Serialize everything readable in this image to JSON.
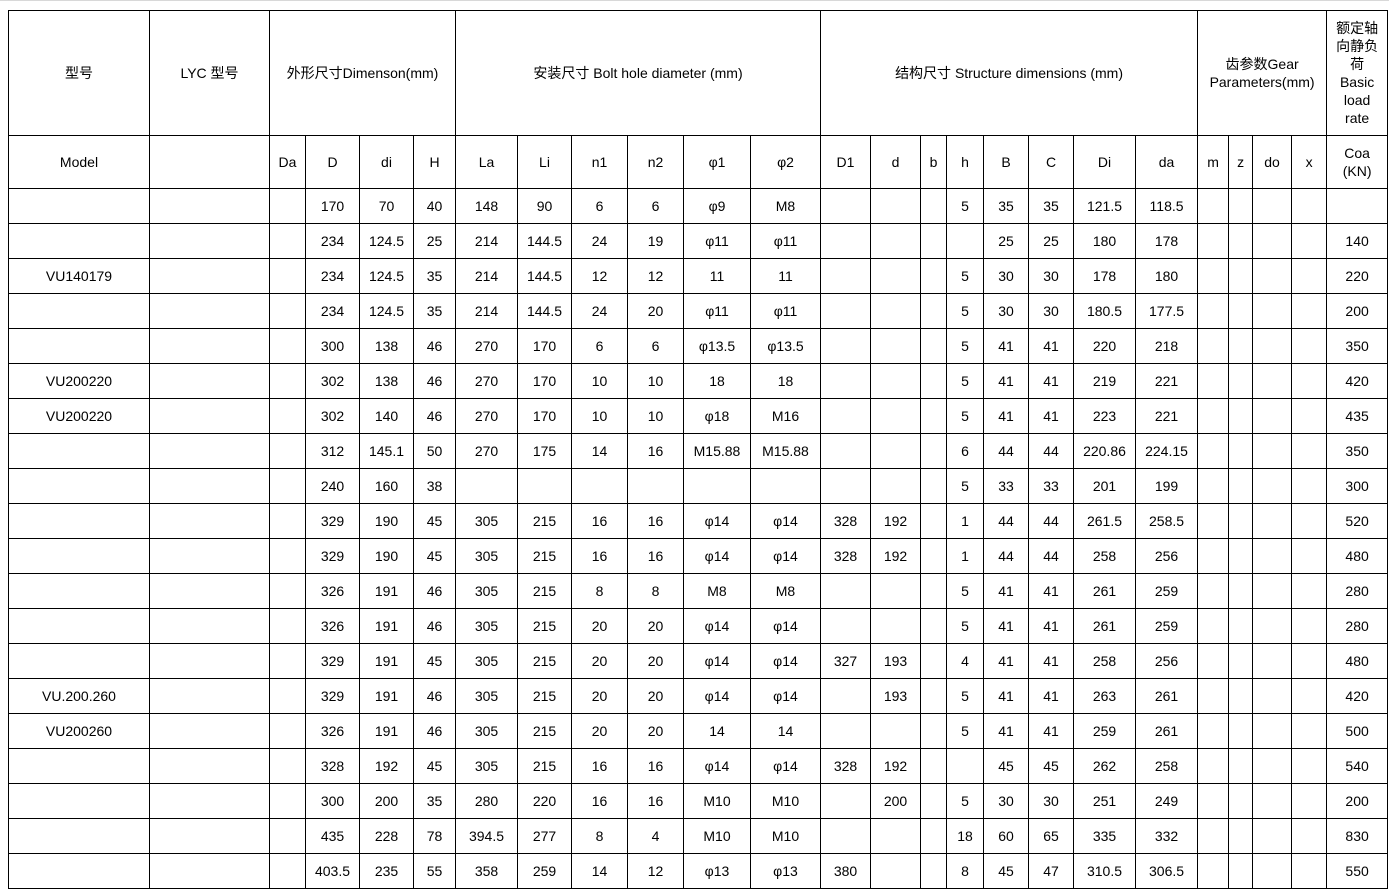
{
  "header": {
    "groups": {
      "model_cn": "型号",
      "lyc": "LYC 型号",
      "dimension": "外形尺寸Dimenson(mm)",
      "bolt": "安装尺寸 Bolt hole diameter (mm)",
      "structure": "结构尺寸 Structure dimensions (mm)",
      "gear": "齿参数Gear Parameters(mm)",
      "load": "额定轴向静负荷 Basic load rate"
    },
    "columns": [
      "Model",
      "",
      "Da",
      "D",
      "di",
      "H",
      "La",
      "Li",
      "n1",
      "n2",
      "φ1",
      "φ2",
      "D1",
      "d",
      "b",
      "h",
      "B",
      "C",
      "Di",
      "da",
      "m",
      "z",
      "do",
      "x",
      "Coa (KN)"
    ]
  },
  "rows": [
    [
      "",
      "",
      "",
      "170",
      "70",
      "40",
      "148",
      "90",
      "6",
      "6",
      "φ9",
      "M8",
      "",
      "",
      "",
      "5",
      "35",
      "35",
      "121.5",
      "118.5",
      "",
      "",
      "",
      "",
      ""
    ],
    [
      "",
      "",
      "",
      "234",
      "124.5",
      "25",
      "214",
      "144.5",
      "24",
      "19",
      "φ11",
      "φ11",
      "",
      "",
      "",
      "",
      "25",
      "25",
      "180",
      "178",
      "",
      "",
      "",
      "",
      "140"
    ],
    [
      "VU140179",
      "",
      "",
      "234",
      "124.5",
      "35",
      "214",
      "144.5",
      "12",
      "12",
      "11",
      "11",
      "",
      "",
      "",
      "5",
      "30",
      "30",
      "178",
      "180",
      "",
      "",
      "",
      "",
      "220"
    ],
    [
      "",
      "",
      "",
      "234",
      "124.5",
      "35",
      "214",
      "144.5",
      "24",
      "20",
      "φ11",
      "φ11",
      "",
      "",
      "",
      "5",
      "30",
      "30",
      "180.5",
      "177.5",
      "",
      "",
      "",
      "",
      "200"
    ],
    [
      "",
      "",
      "",
      "300",
      "138",
      "46",
      "270",
      "170",
      "6",
      "6",
      "φ13.5",
      "φ13.5",
      "",
      "",
      "",
      "5",
      "41",
      "41",
      "220",
      "218",
      "",
      "",
      "",
      "",
      "350"
    ],
    [
      "VU200220",
      "",
      "",
      "302",
      "138",
      "46",
      "270",
      "170",
      "10",
      "10",
      "18",
      "18",
      "",
      "",
      "",
      "5",
      "41",
      "41",
      "219",
      "221",
      "",
      "",
      "",
      "",
      "420"
    ],
    [
      "VU200220",
      "",
      "",
      "302",
      "140",
      "46",
      "270",
      "170",
      "10",
      "10",
      "φ18",
      "M16",
      "",
      "",
      "",
      "5",
      "41",
      "41",
      "223",
      "221",
      "",
      "",
      "",
      "",
      "435"
    ],
    [
      "",
      "",
      "",
      "312",
      "145.1",
      "50",
      "270",
      "175",
      "14",
      "16",
      "M15.88",
      "M15.88",
      "",
      "",
      "",
      "6",
      "44",
      "44",
      "220.86",
      "224.15",
      "",
      "",
      "",
      "",
      "350"
    ],
    [
      "",
      "",
      "",
      "240",
      "160",
      "38",
      "",
      "",
      "",
      "",
      "",
      "",
      "",
      "",
      "",
      "5",
      "33",
      "33",
      "201",
      "199",
      "",
      "",
      "",
      "",
      "300"
    ],
    [
      "",
      "",
      "",
      "329",
      "190",
      "45",
      "305",
      "215",
      "16",
      "16",
      "φ14",
      "φ14",
      "328",
      "192",
      "",
      "1",
      "44",
      "44",
      "261.5",
      "258.5",
      "",
      "",
      "",
      "",
      "520"
    ],
    [
      "",
      "",
      "",
      "329",
      "190",
      "45",
      "305",
      "215",
      "16",
      "16",
      "φ14",
      "φ14",
      "328",
      "192",
      "",
      "1",
      "44",
      "44",
      "258",
      "256",
      "",
      "",
      "",
      "",
      "480"
    ],
    [
      "",
      "",
      "",
      "326",
      "191",
      "46",
      "305",
      "215",
      "8",
      "8",
      "M8",
      "M8",
      "",
      "",
      "",
      "5",
      "41",
      "41",
      "261",
      "259",
      "",
      "",
      "",
      "",
      "280"
    ],
    [
      "",
      "",
      "",
      "326",
      "191",
      "46",
      "305",
      "215",
      "20",
      "20",
      "φ14",
      "φ14",
      "",
      "",
      "",
      "5",
      "41",
      "41",
      "261",
      "259",
      "",
      "",
      "",
      "",
      "280"
    ],
    [
      "",
      "",
      "",
      "329",
      "191",
      "45",
      "305",
      "215",
      "20",
      "20",
      "φ14",
      "φ14",
      "327",
      "193",
      "",
      "4",
      "41",
      "41",
      "258",
      "256",
      "",
      "",
      "",
      "",
      "480"
    ],
    [
      "VU.200.260",
      "",
      "",
      "329",
      "191",
      "46",
      "305",
      "215",
      "20",
      "20",
      "φ14",
      "φ14",
      "",
      "193",
      "",
      "5",
      "41",
      "41",
      "263",
      "261",
      "",
      "",
      "",
      "",
      "420"
    ],
    [
      "VU200260",
      "",
      "",
      "326",
      "191",
      "46",
      "305",
      "215",
      "20",
      "20",
      "14",
      "14",
      "",
      "",
      "",
      "5",
      "41",
      "41",
      "259",
      "261",
      "",
      "",
      "",
      "",
      "500"
    ],
    [
      "",
      "",
      "",
      "328",
      "192",
      "45",
      "305",
      "215",
      "16",
      "16",
      "φ14",
      "φ14",
      "328",
      "192",
      "",
      "",
      "45",
      "45",
      "262",
      "258",
      "",
      "",
      "",
      "",
      "540"
    ],
    [
      "",
      "",
      "",
      "300",
      "200",
      "35",
      "280",
      "220",
      "16",
      "16",
      "M10",
      "M10",
      "",
      "200",
      "",
      "5",
      "30",
      "30",
      "251",
      "249",
      "",
      "",
      "",
      "",
      "200"
    ],
    [
      "",
      "",
      "",
      "435",
      "228",
      "78",
      "394.5",
      "277",
      "8",
      "4",
      "M10",
      "M10",
      "",
      "",
      "",
      "18",
      "60",
      "65",
      "335",
      "332",
      "",
      "",
      "",
      "",
      "830"
    ],
    [
      "",
      "",
      "",
      "403.5",
      "235",
      "55",
      "358",
      "259",
      "14",
      "12",
      "φ13",
      "φ13",
      "380",
      "",
      "",
      "8",
      "45",
      "47",
      "310.5",
      "306.5",
      "",
      "",
      "",
      "",
      "550"
    ]
  ]
}
